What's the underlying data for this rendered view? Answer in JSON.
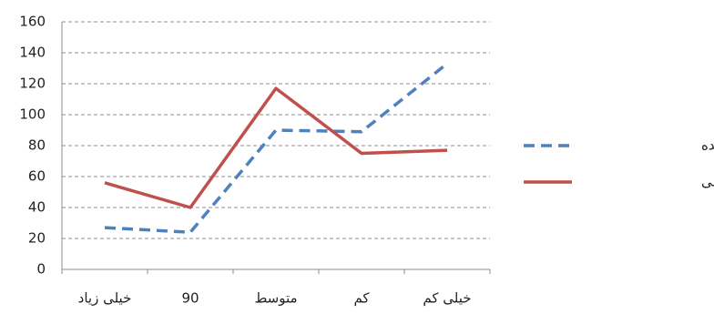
{
  "chart_data": {
    "type": "line",
    "categories": [
      "خیلی زیاد",
      "90",
      "متوسط",
      "کم",
      "خیلی کم"
    ],
    "series": [
      {
        "name": "موفقیت در آینده",
        "color": "#4f81bd",
        "line_style": "dashed",
        "values": [
          27,
          24,
          90,
          89,
          133
        ]
      },
      {
        "name": "حل مشکلات فعلی",
        "color": "#c0504d",
        "line_style": "solid",
        "values": [
          56,
          40,
          117,
          75,
          77
        ]
      }
    ],
    "ylim": [
      0,
      160
    ],
    "yticks": [
      0,
      20,
      40,
      60,
      80,
      100,
      120,
      140,
      160
    ],
    "grid": true,
    "legend": "right"
  }
}
